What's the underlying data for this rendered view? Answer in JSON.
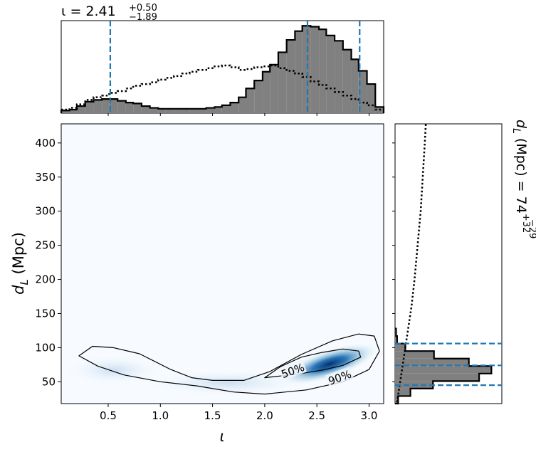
{
  "chart_data": {
    "type": "heatmap",
    "joint": {
      "xlabel": "ι",
      "ylabel_main": "d",
      "ylabel_sub": "L",
      "ylabel_tail": " (Mpc)",
      "xlim": [
        0.05,
        3.14
      ],
      "ylim": [
        18,
        428
      ],
      "xticks": [
        0.5,
        1.0,
        1.5,
        2.0,
        2.5,
        3.0
      ],
      "xtick_labels": [
        "0.5",
        "1.0",
        "1.5",
        "2.0",
        "2.5",
        "3.0"
      ],
      "yticks": [
        50,
        100,
        150,
        200,
        250,
        300,
        350,
        400
      ],
      "ytick_labels": [
        "50",
        "100",
        "150",
        "200",
        "250",
        "300",
        "350",
        "400"
      ],
      "colormap": "Blues",
      "density_peak": {
        "x": 2.62,
        "y": 76
      },
      "contours": [
        {
          "label": "50%",
          "label_pos": {
            "x": 2.27,
            "y": 66
          },
          "points": [
            [
              2.0,
              56
            ],
            [
              2.3,
              61
            ],
            [
              2.55,
              67
            ],
            [
              2.75,
              74
            ],
            [
              2.92,
              86
            ],
            [
              2.9,
              95
            ],
            [
              2.75,
              98
            ],
            [
              2.55,
              93
            ],
            [
              2.35,
              86
            ],
            [
              2.15,
              72
            ],
            [
              2.0,
              56
            ]
          ]
        },
        {
          "label": "90%",
          "label_pos": {
            "x": 2.72,
            "y": 56
          },
          "points": [
            [
              0.22,
              88
            ],
            [
              0.35,
              102
            ],
            [
              0.55,
              100
            ],
            [
              0.8,
              91
            ],
            [
              1.1,
              68
            ],
            [
              1.3,
              56
            ],
            [
              1.5,
              52
            ],
            [
              1.8,
              52
            ],
            [
              2.05,
              65
            ],
            [
              2.35,
              90
            ],
            [
              2.65,
              110
            ],
            [
              2.9,
              120
            ],
            [
              3.05,
              117
            ],
            [
              3.1,
              95
            ],
            [
              3.0,
              68
            ],
            [
              2.75,
              50
            ],
            [
              2.4,
              38
            ],
            [
              2.0,
              32
            ],
            [
              1.7,
              35
            ],
            [
              1.35,
              44
            ],
            [
              1.0,
              50
            ],
            [
              0.65,
              60
            ],
            [
              0.4,
              73
            ],
            [
              0.22,
              88
            ]
          ]
        }
      ]
    },
    "top_marginal": {
      "title_main": "ι = 2.41",
      "title_sup": "+0.50",
      "title_sub": "−1.89",
      "bins": [
        0.05,
        0.13,
        0.2,
        0.28,
        0.36,
        0.44,
        0.51,
        0.59,
        0.67,
        0.74,
        0.82,
        0.9,
        0.98,
        1.05,
        1.13,
        1.21,
        1.28,
        1.36,
        1.44,
        1.52,
        1.59,
        1.67,
        1.75,
        1.82,
        1.9,
        1.98,
        2.05,
        2.13,
        2.21,
        2.29,
        2.36,
        2.44,
        2.52,
        2.59,
        2.67,
        2.75,
        2.83,
        2.9,
        2.98,
        3.06,
        3.14
      ],
      "counts": [
        3,
        4,
        8,
        13,
        15,
        16,
        16,
        14,
        12,
        11,
        8,
        6,
        5,
        5,
        5,
        5,
        5,
        5,
        6,
        7,
        9,
        12,
        18,
        28,
        37,
        47,
        55,
        69,
        83,
        93,
        99,
        98,
        95,
        88,
        82,
        72,
        61,
        48,
        33,
        7
      ],
      "prior_counts": [
        4,
        6,
        10,
        15,
        18,
        20,
        23,
        25,
        28,
        31,
        33,
        35,
        38,
        40,
        42,
        45,
        47,
        49,
        51,
        53,
        54,
        52,
        49,
        50,
        52,
        53,
        54,
        51,
        48,
        45,
        41,
        36,
        32,
        28,
        24,
        20,
        16,
        12,
        9,
        4
      ],
      "ymax": 100,
      "quantiles": [
        0.52,
        2.41,
        2.91
      ]
    },
    "right_marginal": {
      "title_main": "d",
      "title_sub_L": "L",
      "title_mid": " (Mpc) = 74",
      "title_sup": "+32",
      "title_sub": "−29",
      "bins": [
        18,
        29,
        40,
        51,
        62,
        73,
        84,
        95,
        106,
        117,
        128
      ],
      "counts": [
        3,
        15,
        37,
        82,
        94,
        72,
        38,
        10,
        2,
        1
      ],
      "prior_d": [
        20,
        30,
        40,
        60,
        80,
        100,
        130,
        160,
        200,
        250,
        300,
        350,
        400,
        428
      ],
      "prior_w": [
        2,
        3,
        4,
        6,
        8,
        10,
        13,
        16,
        19,
        22,
        25,
        27,
        29,
        30
      ],
      "xmax": 100,
      "quantiles": [
        45,
        74,
        106
      ]
    }
  }
}
